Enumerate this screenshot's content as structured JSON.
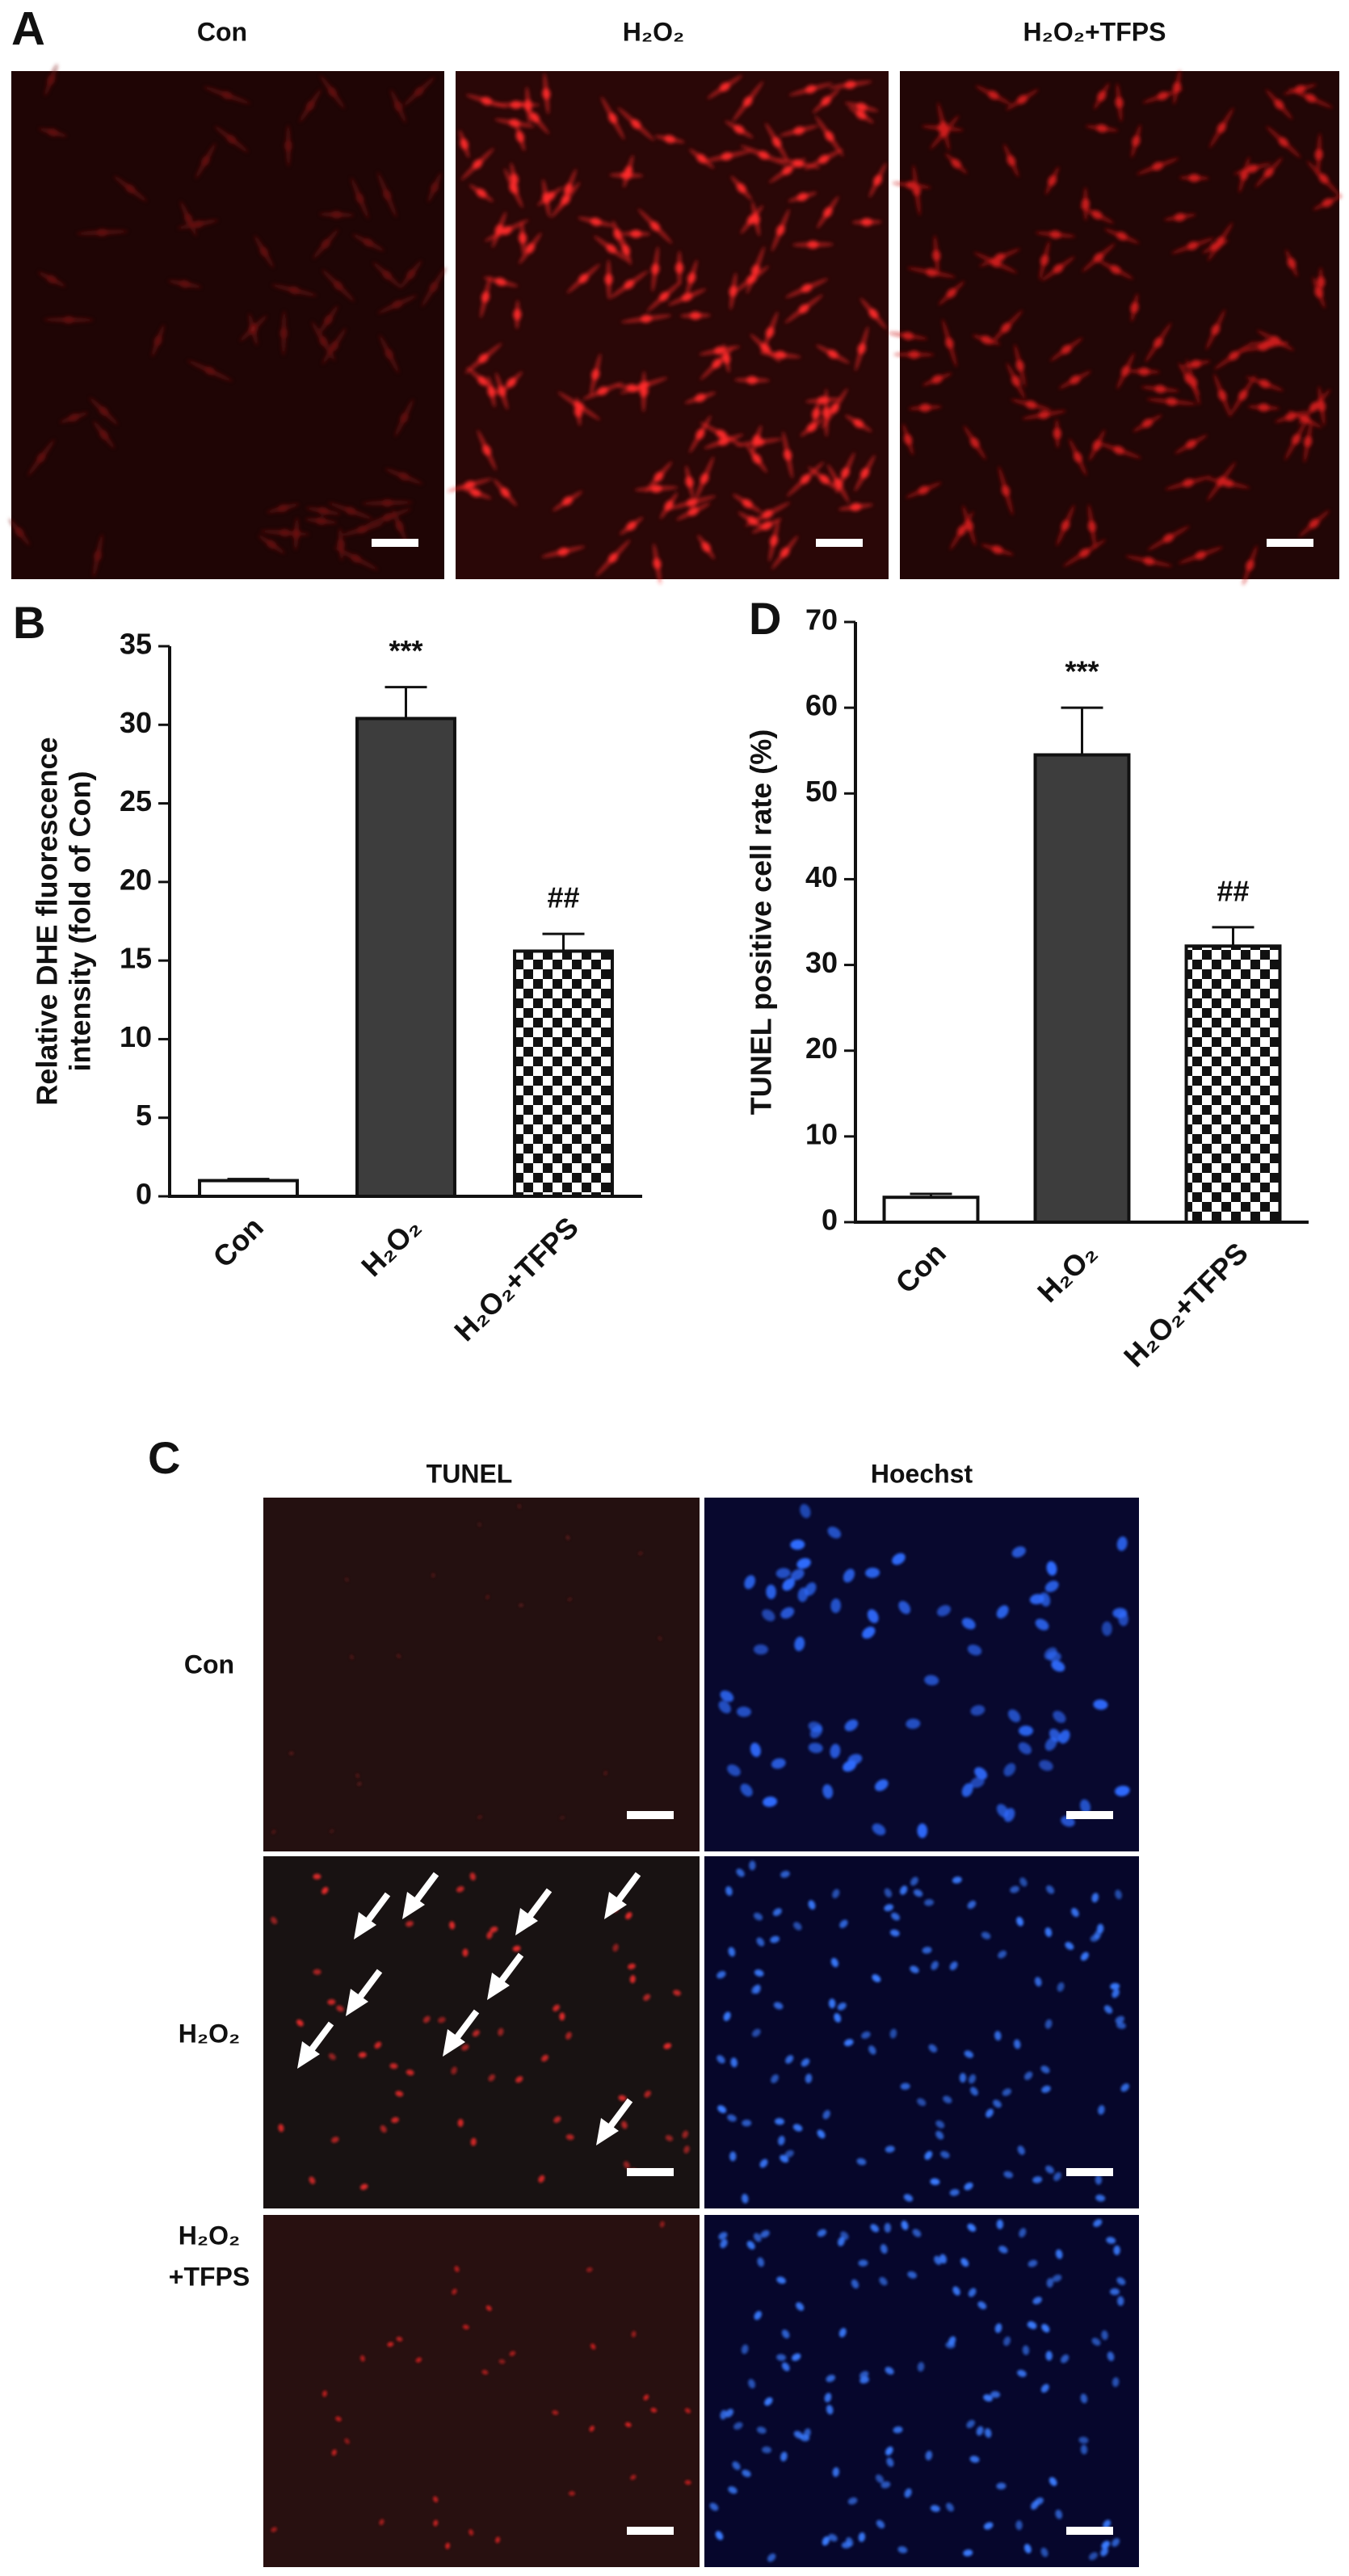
{
  "panels": {
    "labels": [
      "A",
      "B",
      "C",
      "D"
    ],
    "a_titles": [
      "Con",
      "H₂O₂",
      "H₂O₂+TFPS"
    ],
    "c_columns": [
      "TUNEL",
      "Hoechst"
    ],
    "c_rows": [
      [
        "Con"
      ],
      [
        "H₂O₂"
      ],
      [
        "H₂O₂",
        "+TFPS"
      ]
    ]
  },
  "chart_data": [
    {
      "type": "bar",
      "y_label": [
        "Relative DHE fluorescence",
        "intensity (fold of Con)"
      ],
      "categories": [
        "Con",
        "H₂O₂",
        "H₂O₂+TFPS"
      ],
      "values": [
        1.0,
        30.4,
        15.6
      ],
      "errors": [
        0.1,
        2.0,
        1.1
      ],
      "annotations": [
        null,
        "***",
        "##"
      ],
      "fills": [
        "#ffffff",
        "#3d3d3d",
        "checker"
      ],
      "ylim": [
        0,
        35
      ],
      "yticks": [
        0,
        5,
        10,
        15,
        20,
        25,
        30,
        35
      ],
      "grid": false
    },
    {
      "type": "bar",
      "y_label": [
        "TUNEL positive cell rate (%)"
      ],
      "categories": [
        "Con",
        "H₂O₂",
        "H₂O₂+TFPS"
      ],
      "values": [
        2.9,
        54.5,
        32.2
      ],
      "errors": [
        0.4,
        5.5,
        2.2
      ],
      "annotations": [
        null,
        "***",
        "##"
      ],
      "fills": [
        "#ffffff",
        "#3d3d3d",
        "checker"
      ],
      "ylim": [
        0,
        70
      ],
      "yticks": [
        0,
        10,
        20,
        30,
        40,
        50,
        60,
        70
      ],
      "grid": false
    }
  ]
}
